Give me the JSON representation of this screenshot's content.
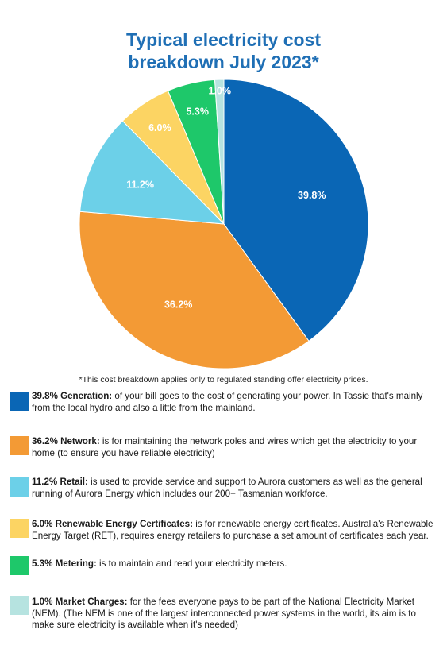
{
  "title": [
    "Typical electricity cost",
    "breakdown July 2023*"
  ],
  "footnote": "*This cost breakdown applies only to regulated standing offer electricity prices.",
  "chart_data": {
    "type": "pie",
    "title": "Typical electricity cost breakdown July 2023*",
    "slices": [
      {
        "label": "Generation",
        "value": 39.8,
        "display": "39.8%",
        "color": "#0a66b5"
      },
      {
        "label": "Network",
        "value": 36.2,
        "display": "36.2%",
        "color": "#f39a35"
      },
      {
        "label": "Retail",
        "value": 11.2,
        "display": "11.2%",
        "color": "#6cd0e8"
      },
      {
        "label": "Renewable Energy Certificates",
        "value": 6.0,
        "display": "6.0%",
        "color": "#fcd463"
      },
      {
        "label": "Metering",
        "value": 5.3,
        "display": "5.3%",
        "color": "#1ec86a"
      },
      {
        "label": "Market Charges",
        "value": 1.0,
        "display": "1.0%",
        "color": "#b6e3e0"
      }
    ]
  },
  "legend": [
    {
      "bold": "39.8% Generation:",
      "text": " of your bill goes to the cost of generating your power. In Tassie that's mainly from the local hydro and also a little from the mainland.",
      "color": "#0a66b5"
    },
    {
      "bold": "36.2% Network:",
      "text": " is for maintaining the network poles and wires which get the electricity to your home (to ensure you have reliable electricity)",
      "color": "#f39a35"
    },
    {
      "bold": "11.2% Retail:",
      "text": " is used to provide service and support to Aurora customers as well as the general running of Aurora Energy which includes our 200+ Tasmanian workforce.",
      "color": "#6cd0e8"
    },
    {
      "bold": "6.0% Renewable Energy Certificates:",
      "text": " is for renewable energy certificates. Australia's Renewable Energy Target (RET), requires energy retailers to purchase a set amount of certificates each year.",
      "color": "#fcd463"
    },
    {
      "bold": "5.3% Metering:",
      "text": " is to maintain and read your electricity meters.",
      "color": "#1ec86a"
    },
    {
      "bold": "1.0% Market Charges:",
      "text": " for the fees everyone pays to be part of the National Electricity Market (NEM). (The NEM is one of the largest interconnected power systems in the world, its aim is to make sure electricity is available when it's needed)",
      "color": "#b6e3e0"
    }
  ]
}
